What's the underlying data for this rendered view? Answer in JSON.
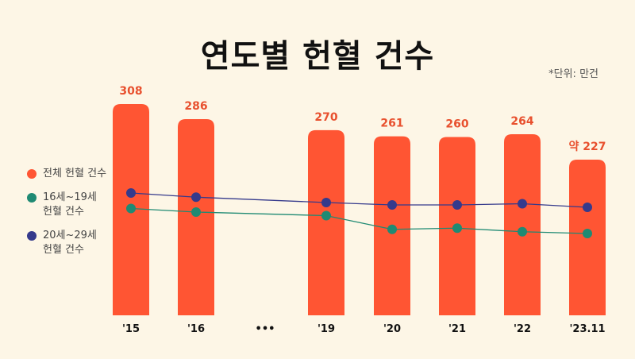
{
  "title": "연도별 헌혈 건수",
  "unit_note": "*단위: 만건",
  "colors": {
    "background": "#fdf6e6",
    "bar": "#ff5533",
    "bar_label": "#e8502e",
    "teen": "#1f8a73",
    "twenties": "#353a8c"
  },
  "legend": [
    {
      "label": "전체 헌혈 건수",
      "color": "#ff5533"
    },
    {
      "label": "16세~19세\n헌혈 건수",
      "color": "#1f8a73"
    },
    {
      "label": "20세~29세\n헌혈 건수",
      "color": "#353a8c"
    }
  ],
  "chart_data": {
    "type": "bar",
    "categories": [
      "'15",
      "'16",
      "•••",
      "'19",
      "'20",
      "'21",
      "'22",
      "'23.11"
    ],
    "series": [
      {
        "name": "전체 헌혈 건수",
        "type": "bar",
        "values": [
          308,
          286,
          null,
          270,
          261,
          260,
          264,
          227
        ],
        "labels": [
          "308",
          "286",
          "",
          "270",
          "261",
          "260",
          "264",
          "약 227"
        ]
      },
      {
        "name": "16세~19세 헌혈 건수",
        "type": "line",
        "values": [
          78,
          72,
          null,
          66,
          43,
          45,
          39,
          36
        ]
      },
      {
        "name": "20세~29세 헌혈 건수",
        "type": "line",
        "values": [
          104,
          97,
          null,
          88,
          84,
          84,
          86,
          80
        ]
      }
    ],
    "ylim": [
      0,
      320
    ],
    "gap_category": "•••"
  }
}
